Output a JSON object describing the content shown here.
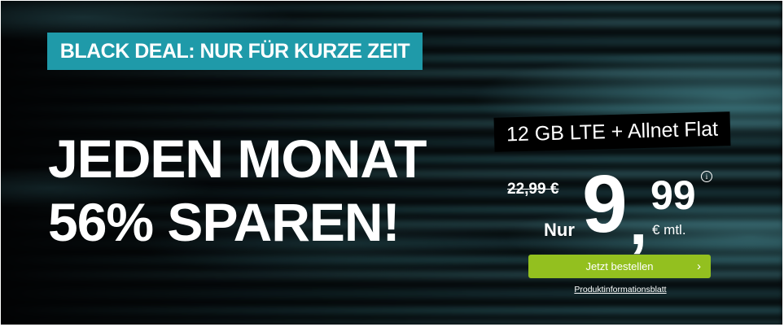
{
  "badge": "BLACK DEAL: NUR FÜR KURZE ZEIT",
  "headline": {
    "line1": "JEDEN MONAT",
    "line2": "56% SPAREN!"
  },
  "plan": "12 GB LTE + Allnet Flat",
  "price": {
    "old": "22,99 €",
    "prefix": "Nur",
    "euros": "9",
    "comma": ",",
    "cents": "99",
    "unit": "€ mtl.",
    "info_icon": "i"
  },
  "cta": {
    "label": "Jetzt bestellen",
    "chevron": "›"
  },
  "link": "Produktinformationsblatt",
  "colors": {
    "badge": "#1f9aa9",
    "button": "#93c01f",
    "background": "#020304"
  }
}
